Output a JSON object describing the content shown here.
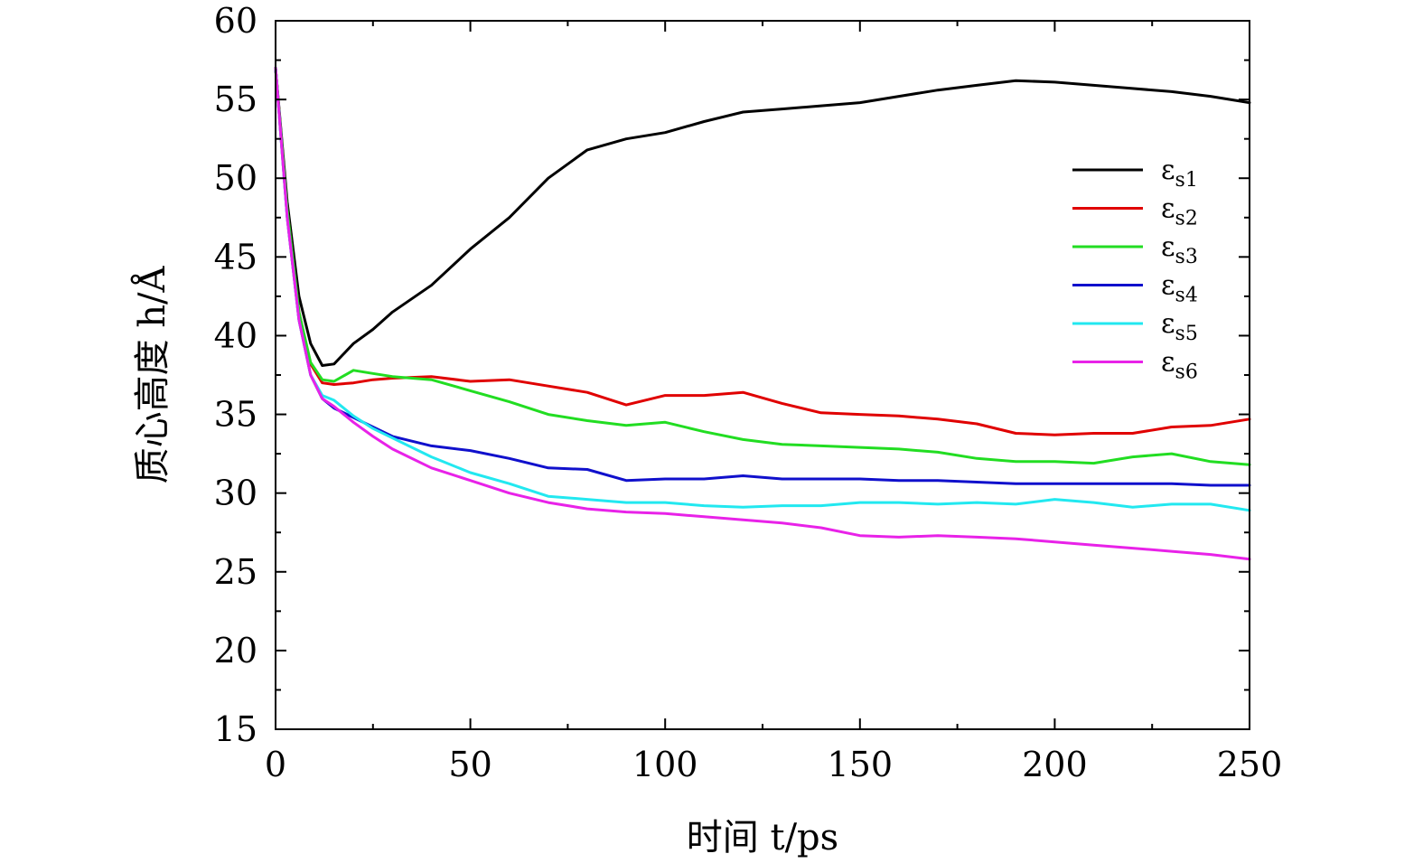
{
  "chart_data": {
    "type": "line",
    "xlabel": "时间 t/ps",
    "ylabel": "质心高度 h/Å",
    "xlim": [
      0,
      250
    ],
    "ylim": [
      15,
      60
    ],
    "xticks": [
      0,
      50,
      100,
      150,
      200,
      250
    ],
    "yticks": [
      15,
      20,
      25,
      30,
      35,
      40,
      45,
      50,
      55,
      60
    ],
    "xtick_labels": [
      "0",
      "50",
      "100",
      "150",
      "200",
      "250"
    ],
    "ytick_labels": [
      "15",
      "20",
      "25",
      "30",
      "35",
      "40",
      "45",
      "50",
      "55",
      "60"
    ],
    "grid": false,
    "legend_position": "upper-right",
    "series": [
      {
        "name": "εs1",
        "legend_symbol": "ε",
        "legend_subscript": "s1",
        "color": "#000000",
        "x": [
          0,
          3,
          6,
          9,
          12,
          15,
          20,
          25,
          30,
          40,
          50,
          60,
          70,
          80,
          90,
          100,
          110,
          120,
          130,
          140,
          150,
          160,
          170,
          180,
          190,
          200,
          210,
          220,
          230,
          240,
          250
        ],
        "y": [
          57,
          48.5,
          42.5,
          39.5,
          38.1,
          38.2,
          39.5,
          40.4,
          41.5,
          43.2,
          45.5,
          47.5,
          50,
          51.8,
          52.5,
          52.9,
          53.6,
          54.2,
          54.4,
          54.6,
          54.8,
          55.2,
          55.6,
          55.9,
          56.2,
          56.1,
          55.9,
          55.7,
          55.5,
          55.2,
          54.8
        ]
      },
      {
        "name": "εs2",
        "legend_symbol": "ε",
        "legend_subscript": "s2",
        "color": "#e00000",
        "x": [
          0,
          3,
          6,
          9,
          12,
          15,
          20,
          25,
          30,
          40,
          50,
          60,
          70,
          80,
          90,
          100,
          110,
          120,
          130,
          140,
          150,
          160,
          170,
          180,
          190,
          200,
          210,
          220,
          230,
          240,
          250
        ],
        "y": [
          57,
          48,
          41.5,
          38.2,
          37,
          36.9,
          37,
          37.2,
          37.3,
          37.4,
          37.1,
          37.2,
          36.8,
          36.4,
          35.6,
          36.2,
          36.2,
          36.4,
          35.7,
          35.1,
          35,
          34.9,
          34.7,
          34.4,
          33.8,
          33.7,
          33.8,
          33.8,
          34.2,
          34.3,
          34.7
        ]
      },
      {
        "name": "εs3",
        "legend_symbol": "ε",
        "legend_subscript": "s3",
        "color": "#22dd22",
        "x": [
          0,
          3,
          6,
          9,
          12,
          15,
          20,
          25,
          30,
          40,
          50,
          60,
          70,
          80,
          90,
          100,
          110,
          120,
          130,
          140,
          150,
          160,
          170,
          180,
          190,
          200,
          210,
          220,
          230,
          240,
          250
        ],
        "y": [
          57,
          48,
          41.5,
          38.3,
          37.2,
          37.1,
          37.8,
          37.6,
          37.4,
          37.2,
          36.5,
          35.8,
          35,
          34.6,
          34.3,
          34.5,
          33.9,
          33.4,
          33.1,
          33,
          32.9,
          32.8,
          32.6,
          32.2,
          32,
          32,
          31.9,
          32.3,
          32.5,
          32,
          31.8
        ]
      },
      {
        "name": "εs4",
        "legend_symbol": "ε",
        "legend_subscript": "s4",
        "color": "#1010cc",
        "x": [
          0,
          3,
          6,
          9,
          12,
          15,
          20,
          25,
          30,
          40,
          50,
          60,
          70,
          80,
          90,
          100,
          110,
          120,
          130,
          140,
          150,
          160,
          170,
          180,
          190,
          200,
          210,
          220,
          230,
          240,
          250
        ],
        "y": [
          57,
          47.5,
          41,
          37.5,
          36,
          35.4,
          34.8,
          34.2,
          33.6,
          33,
          32.7,
          32.2,
          31.6,
          31.5,
          30.8,
          30.9,
          30.9,
          31.1,
          30.9,
          30.9,
          30.9,
          30.8,
          30.8,
          30.7,
          30.6,
          30.6,
          30.6,
          30.6,
          30.6,
          30.5,
          30.5
        ]
      },
      {
        "name": "εs5",
        "legend_symbol": "ε",
        "legend_subscript": "s5",
        "color": "#22e8f0",
        "x": [
          0,
          3,
          6,
          9,
          12,
          15,
          20,
          25,
          30,
          40,
          50,
          60,
          70,
          80,
          90,
          100,
          110,
          120,
          130,
          140,
          150,
          160,
          170,
          180,
          190,
          200,
          210,
          220,
          230,
          240,
          250
        ],
        "y": [
          57,
          47.5,
          41,
          37.5,
          36.2,
          35.9,
          34.9,
          34.1,
          33.5,
          32.3,
          31.3,
          30.6,
          29.8,
          29.6,
          29.4,
          29.4,
          29.2,
          29.1,
          29.2,
          29.2,
          29.4,
          29.4,
          29.3,
          29.4,
          29.3,
          29.6,
          29.4,
          29.1,
          29.3,
          29.3,
          28.9
        ]
      },
      {
        "name": "εs6",
        "legend_symbol": "ε",
        "legend_subscript": "s6",
        "color": "#e822e8",
        "x": [
          0,
          3,
          6,
          9,
          12,
          15,
          20,
          25,
          30,
          40,
          50,
          60,
          70,
          80,
          90,
          100,
          110,
          120,
          130,
          140,
          150,
          160,
          170,
          180,
          190,
          200,
          210,
          220,
          230,
          240,
          250
        ],
        "y": [
          57,
          47.5,
          41,
          37.5,
          36,
          35.5,
          34.5,
          33.6,
          32.8,
          31.6,
          30.8,
          30,
          29.4,
          29,
          28.8,
          28.7,
          28.5,
          28.3,
          28.1,
          27.8,
          27.3,
          27.2,
          27.3,
          27.2,
          27.1,
          26.9,
          26.7,
          26.5,
          26.3,
          26.1,
          25.8
        ]
      }
    ]
  }
}
